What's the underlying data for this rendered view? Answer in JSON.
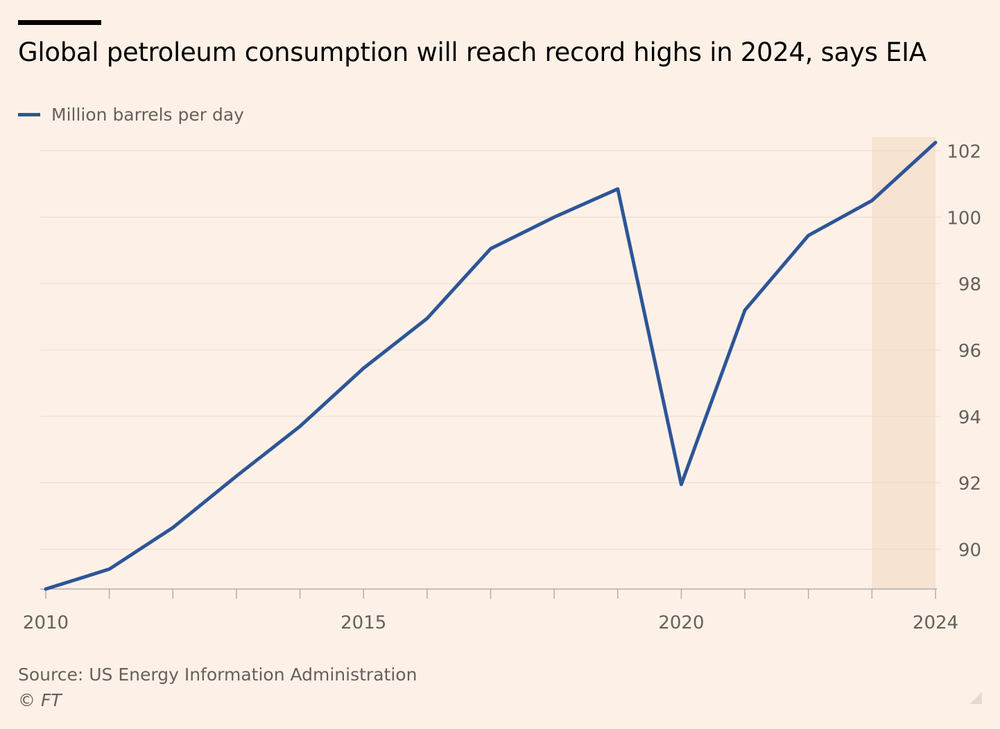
{
  "header": {
    "title": "Global petroleum consumption will reach record highs in 2024, says EIA"
  },
  "legend": {
    "label": "Million barrels per day",
    "color": "#2e5597"
  },
  "footer": {
    "source": "Source: US Energy Information Administration",
    "credit": "© FT"
  },
  "colors": {
    "background": "#fdf1e7",
    "line": "#2e5597",
    "forecast_shade": "#f7e3d1",
    "grid": "#e6dbd2",
    "axis": "#b3aca7",
    "text_muted": "#66605c"
  },
  "chart_data": {
    "type": "line",
    "title": "Global petroleum consumption will reach record highs in 2024, says EIA",
    "xlabel": "",
    "ylabel": "",
    "x": [
      2010,
      2011,
      2012,
      2013,
      2014,
      2015,
      2016,
      2017,
      2018,
      2019,
      2020,
      2021,
      2022,
      2023,
      2024
    ],
    "series": [
      {
        "name": "Million barrels per day",
        "values": [
          88.8,
          89.4,
          90.65,
          92.2,
          93.7,
          95.45,
          96.95,
          99.05,
          100.0,
          100.85,
          91.95,
          97.2,
          99.45,
          100.5,
          102.25
        ]
      }
    ],
    "xlim": [
      2010,
      2024
    ],
    "ylim": [
      88.8,
      102.2
    ],
    "x_ticks": [
      2010,
      2011,
      2012,
      2013,
      2014,
      2015,
      2016,
      2017,
      2018,
      2019,
      2020,
      2021,
      2022,
      2023,
      2024
    ],
    "x_tick_labels": [
      {
        "value": 2010,
        "label": "2010"
      },
      {
        "value": 2015,
        "label": "2015"
      },
      {
        "value": 2020,
        "label": "2020"
      },
      {
        "value": 2024,
        "label": "2024"
      }
    ],
    "y_ticks": [
      {
        "value": 90,
        "label": "90"
      },
      {
        "value": 92,
        "label": "92"
      },
      {
        "value": 94,
        "label": "94"
      },
      {
        "value": 96,
        "label": "96"
      },
      {
        "value": 98,
        "label": "98"
      },
      {
        "value": 100,
        "label": "100"
      },
      {
        "value": 102,
        "label": "102"
      }
    ],
    "shaded_range": [
      2023,
      2024
    ],
    "y_axis_side": "right",
    "grid": true,
    "legend_position": "top-left"
  }
}
